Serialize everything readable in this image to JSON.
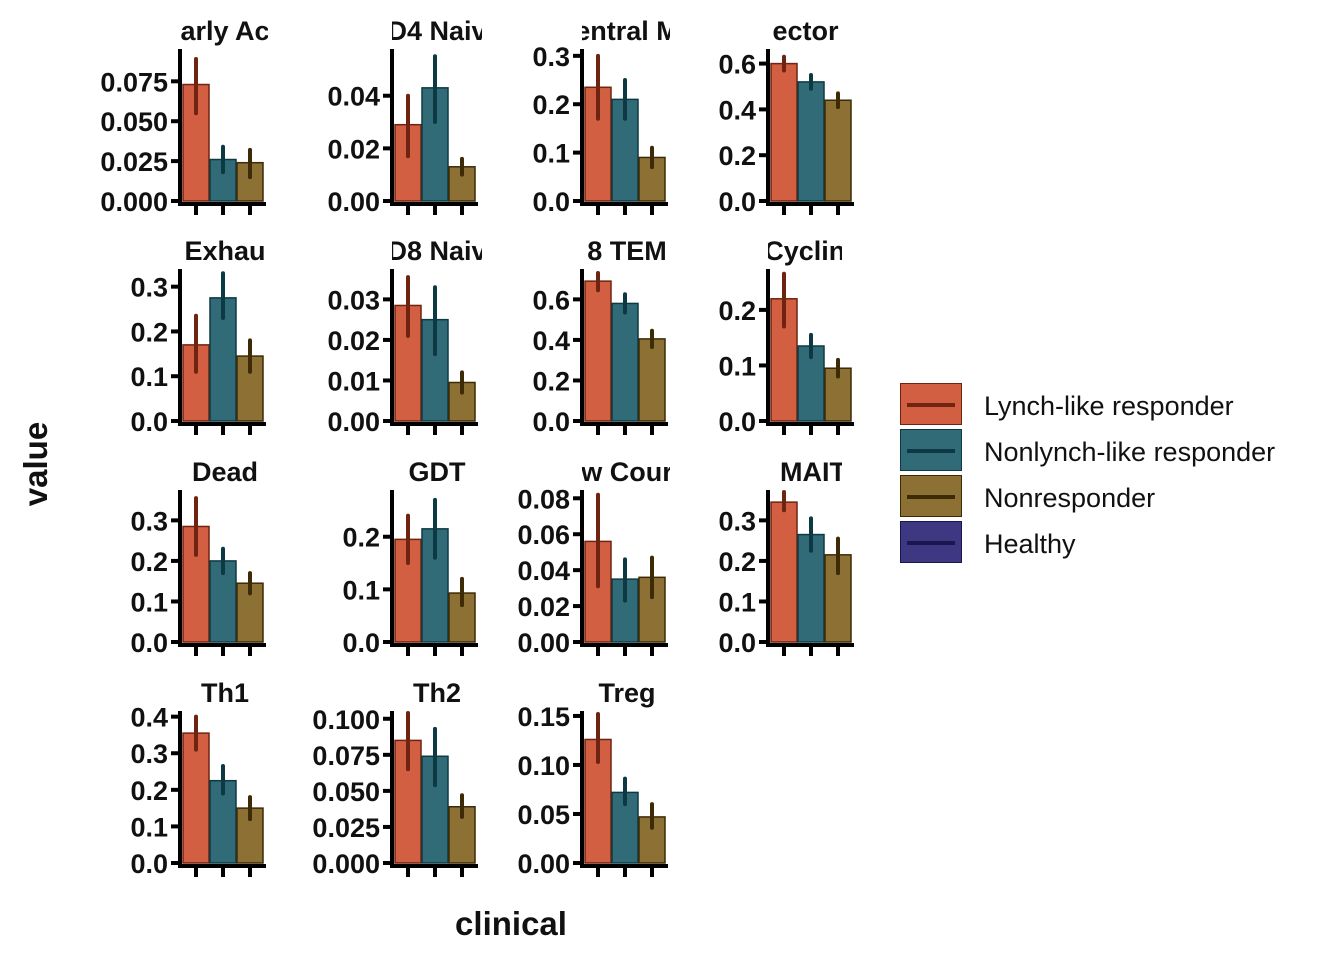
{
  "chart_data": {
    "type": "bar",
    "xlabel": "clinical",
    "ylabel": "value",
    "series_names": [
      "Lynch-like responder",
      "Nonlynch-like responder",
      "Nonresponder",
      "Healthy"
    ],
    "colors": {
      "fill": [
        "#d35f42",
        "#316b78",
        "#8d7034",
        "#3e3782"
      ],
      "line": [
        "#6e2410",
        "#0d3a42",
        "#3d2a06",
        "#1a1650"
      ]
    },
    "legend_position": "right",
    "grid": false,
    "panels": [
      {
        "title": "arly Ac",
        "ticks": [
          "0.000",
          "0.025",
          "0.050",
          "0.075"
        ],
        "tick_values": [
          0,
          0.025,
          0.05,
          0.075
        ],
        "ylim": [
          0,
          0.094
        ],
        "values": [
          0.073,
          0.026,
          0.024
        ],
        "err_low": [
          0.055,
          0.018,
          0.015
        ],
        "err_high": [
          0.089,
          0.034,
          0.032
        ]
      },
      {
        "title": "D4 Naiv",
        "ticks": [
          "0.00",
          "0.02",
          "0.04"
        ],
        "tick_values": [
          0,
          0.02,
          0.04
        ],
        "ylim": [
          0,
          0.057
        ],
        "values": [
          0.029,
          0.043,
          0.013
        ],
        "err_low": [
          0.017,
          0.03,
          0.01
        ],
        "err_high": [
          0.04,
          0.055,
          0.016
        ]
      },
      {
        "title": "entral M",
        "ticks": [
          "0.0",
          "0.1",
          "0.2",
          "0.3"
        ],
        "tick_values": [
          0,
          0.1,
          0.2,
          0.3
        ],
        "ylim": [
          0,
          0.31
        ],
        "values": [
          0.235,
          0.21,
          0.09
        ],
        "err_low": [
          0.17,
          0.17,
          0.07
        ],
        "err_high": [
          0.3,
          0.25,
          0.11
        ]
      },
      {
        "title": "ector I",
        "ticks": [
          "0.0",
          "0.2",
          "0.4",
          "0.6"
        ],
        "tick_values": [
          0,
          0.2,
          0.4,
          0.6
        ],
        "ylim": [
          0,
          0.655
        ],
        "values": [
          0.6,
          0.52,
          0.44
        ],
        "err_low": [
          0.57,
          0.49,
          0.41
        ],
        "err_high": [
          0.63,
          0.55,
          0.47
        ]
      },
      {
        "title": "Exhau",
        "ticks": [
          "0.0",
          "0.1",
          "0.2",
          "0.3"
        ],
        "tick_values": [
          0,
          0.1,
          0.2,
          0.3
        ],
        "ylim": [
          0,
          0.335
        ],
        "values": [
          0.17,
          0.275,
          0.145
        ],
        "err_low": [
          0.11,
          0.23,
          0.11
        ],
        "err_high": [
          0.235,
          0.33,
          0.18
        ]
      },
      {
        "title": "D8 Naiv",
        "ticks": [
          "0.00",
          "0.01",
          "0.02",
          "0.03"
        ],
        "tick_values": [
          0,
          0.01,
          0.02,
          0.03
        ],
        "ylim": [
          0,
          0.037
        ],
        "values": [
          0.0285,
          0.025,
          0.0095
        ],
        "err_low": [
          0.021,
          0.0165,
          0.007
        ],
        "err_high": [
          0.0355,
          0.033,
          0.012
        ]
      },
      {
        "title": "8 TEM",
        "ticks": [
          "0.0",
          "0.2",
          "0.4",
          "0.6"
        ],
        "tick_values": [
          0,
          0.2,
          0.4,
          0.6
        ],
        "ylim": [
          0,
          0.74
        ],
        "values": [
          0.69,
          0.58,
          0.405
        ],
        "err_low": [
          0.645,
          0.535,
          0.365
        ],
        "err_high": [
          0.73,
          0.625,
          0.445
        ]
      },
      {
        "title": "Cycling",
        "ticks": [
          "0.0",
          "0.1",
          "0.2"
        ],
        "tick_values": [
          0,
          0.1,
          0.2
        ],
        "ylim": [
          0,
          0.27
        ],
        "values": [
          0.22,
          0.135,
          0.095
        ],
        "err_low": [
          0.17,
          0.115,
          0.08
        ],
        "err_high": [
          0.265,
          0.155,
          0.11
        ]
      },
      {
        "title": "Dead",
        "ticks": [
          "0.0",
          "0.1",
          "0.2",
          "0.3"
        ],
        "tick_values": [
          0,
          0.1,
          0.2,
          0.3
        ],
        "ylim": [
          0,
          0.37
        ],
        "values": [
          0.285,
          0.2,
          0.145
        ],
        "err_low": [
          0.215,
          0.17,
          0.12
        ],
        "err_high": [
          0.355,
          0.23,
          0.17
        ]
      },
      {
        "title": "GDT",
        "ticks": [
          "0.0",
          "0.1",
          "0.2"
        ],
        "tick_values": [
          0,
          0.1,
          0.2
        ],
        "ylim": [
          0,
          0.285
        ],
        "values": [
          0.195,
          0.215,
          0.093
        ],
        "err_low": [
          0.15,
          0.16,
          0.07
        ],
        "err_high": [
          0.24,
          0.27,
          0.12
        ]
      },
      {
        "title": "w Cour",
        "ticks": [
          "0.00",
          "0.02",
          "0.04",
          "0.06",
          "0.08"
        ],
        "tick_values": [
          0,
          0.02,
          0.04,
          0.06,
          0.08
        ],
        "ylim": [
          0,
          0.0835
        ],
        "values": [
          0.056,
          0.035,
          0.036
        ],
        "err_low": [
          0.031,
          0.023,
          0.025
        ],
        "err_high": [
          0.082,
          0.046,
          0.047
        ]
      },
      {
        "title": "MAIT",
        "ticks": [
          "0.0",
          "0.1",
          "0.2",
          "0.3"
        ],
        "tick_values": [
          0,
          0.1,
          0.2,
          0.3
        ],
        "ylim": [
          0,
          0.37
        ],
        "values": [
          0.345,
          0.265,
          0.215
        ],
        "err_low": [
          0.325,
          0.225,
          0.17
        ],
        "err_high": [
          0.37,
          0.305,
          0.255
        ]
      },
      {
        "title": "Th1",
        "ticks": [
          "0.0",
          "0.1",
          "0.2",
          "0.3",
          "0.4"
        ],
        "tick_values": [
          0,
          0.1,
          0.2,
          0.3,
          0.4
        ],
        "ylim": [
          0,
          0.41
        ],
        "values": [
          0.355,
          0.225,
          0.15
        ],
        "err_low": [
          0.31,
          0.19,
          0.12
        ],
        "err_high": [
          0.4,
          0.265,
          0.18
        ]
      },
      {
        "title": "Th2",
        "ticks": [
          "0.000",
          "0.025",
          "0.050",
          "0.075",
          "0.100"
        ],
        "tick_values": [
          0,
          0.025,
          0.05,
          0.075,
          0.1
        ],
        "ylim": [
          0,
          0.104
        ],
        "values": [
          0.085,
          0.074,
          0.039
        ],
        "err_low": [
          0.065,
          0.054,
          0.032
        ],
        "err_high": [
          0.104,
          0.093,
          0.047
        ]
      },
      {
        "title": "Treg",
        "ticks": [
          "0.00",
          "0.05",
          "0.10",
          "0.15"
        ],
        "tick_values": [
          0,
          0.05,
          0.1,
          0.15
        ],
        "ylim": [
          0,
          0.153
        ],
        "values": [
          0.126,
          0.072,
          0.047
        ],
        "err_low": [
          0.103,
          0.06,
          0.036
        ],
        "err_high": [
          0.152,
          0.086,
          0.06
        ]
      }
    ]
  }
}
